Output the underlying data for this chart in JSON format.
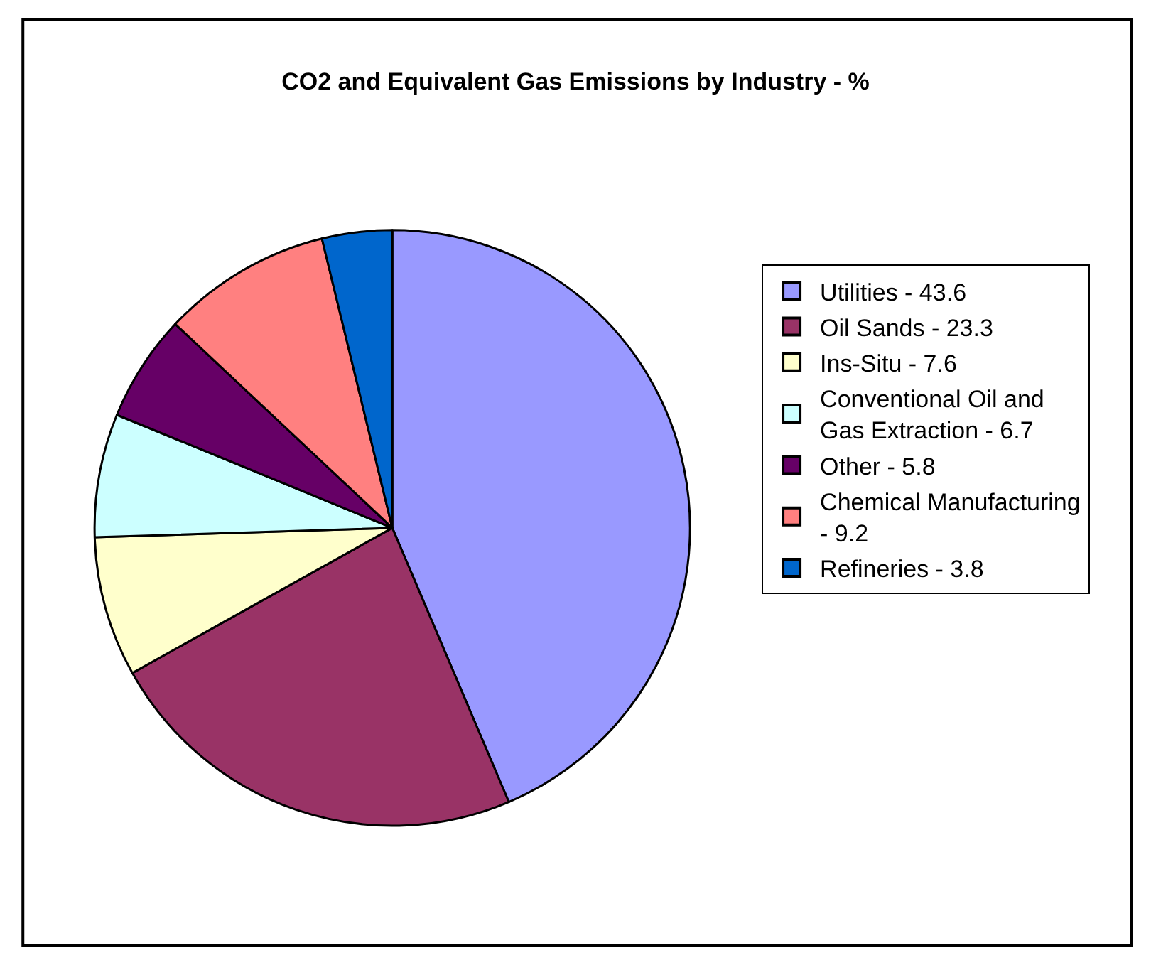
{
  "chart_data": {
    "type": "pie",
    "title": "CO2 and Equivalent Gas Emissions by Industry - %",
    "categories": [
      "Utilities - 43.6",
      "Oil Sands - 23.3",
      "Ins-Situ - 7.6",
      "Conventional Oil and Gas Extraction - 6.7",
      "Other - 5.8",
      "Chemical Manufacturing - 9.2",
      "Refineries - 3.8"
    ],
    "values": [
      43.6,
      23.3,
      7.6,
      6.7,
      5.8,
      9.2,
      3.8
    ],
    "colors": [
      "#9999ff",
      "#993366",
      "#ffffcc",
      "#ccffff",
      "#660066",
      "#ff8080",
      "#0066cc"
    ],
    "legend": "right"
  }
}
